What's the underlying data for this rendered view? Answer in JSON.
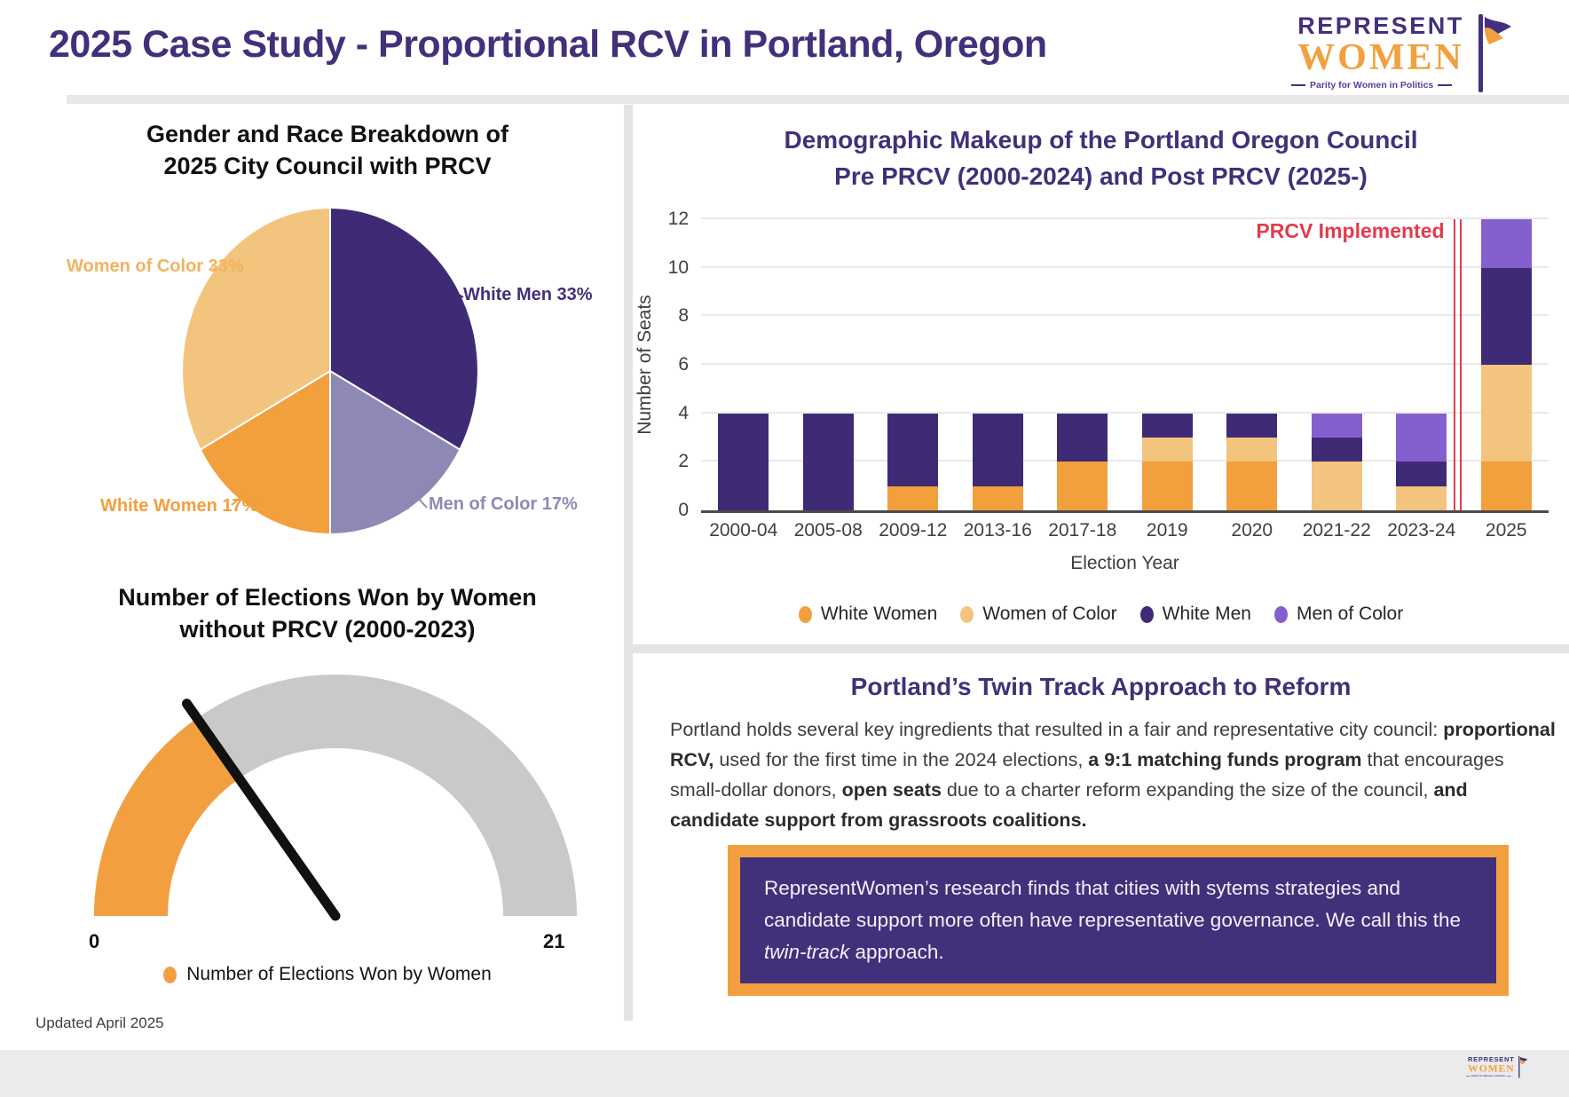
{
  "page": {
    "title": "2025 Case Study - Proportional RCV in Portland, Oregon",
    "updated": "Updated April 2025"
  },
  "logo": {
    "line1": "REPRESENT",
    "line2": "WOMEN",
    "tagline": "Parity for Women in Politics"
  },
  "colors": {
    "brand_purple": "#42307A",
    "brand_orange": "#F2A03F",
    "tan": "#F2C47D",
    "bar_light_purple": "#8460CE",
    "pie_gray_purple": "#8E89B4",
    "annotation_red": "#E23B4C",
    "gauge_track_gray": "#C9C9C9",
    "divider_gray": "#E4E4E4",
    "footer_gray": "#EBEBEB"
  },
  "chart_data": [
    {
      "type": "pie",
      "title": "Gender and Race Breakdown of 2025 City Council with PRCV",
      "title_line1": "Gender and Race Breakdown of",
      "title_line2": "2025 City Council with PRCV",
      "slices": [
        {
          "label": "White Men",
          "pct": 33,
          "display": "White Men 33%",
          "color": "#3F2B75"
        },
        {
          "label": "Men of Color",
          "pct": 17,
          "display": "Men of Color 17%",
          "color": "#8E89B4"
        },
        {
          "label": "White Women",
          "pct": 17,
          "display": "White Women 17%",
          "color": "#F29F3D"
        },
        {
          "label": "Women of Color",
          "pct": 33,
          "display": "Women of Color 33%",
          "color": "#F2C47D"
        }
      ],
      "start_angle_deg": 0,
      "clockwise": true,
      "legend_position": "none"
    },
    {
      "type": "bar",
      "stacked": true,
      "title": "Demographic Makeup of the Portland Oregon Council Pre PRCV (2000-2024) and Post PRCV (2025-)",
      "title_line1": "Demographic Makeup of the Portland Oregon Council",
      "title_line2": "Pre PRCV (2000-2024) and Post PRCV (2025-)",
      "categories": [
        "2000-04",
        "2005-08",
        "2009-12",
        "2013-16",
        "2017-18",
        "2019",
        "2020",
        "2021-22",
        "2023-24",
        "2025"
      ],
      "series": [
        {
          "name": "White Women",
          "color": "#F29F3D",
          "values": [
            0,
            0,
            1,
            1,
            2,
            2,
            2,
            0,
            0,
            2
          ]
        },
        {
          "name": "Women of Color",
          "color": "#F2C47D",
          "values": [
            0,
            0,
            0,
            0,
            0,
            1,
            1,
            2,
            1,
            4
          ]
        },
        {
          "name": "White Men",
          "color": "#3F2B75",
          "values": [
            4,
            4,
            3,
            3,
            2,
            1,
            1,
            1,
            1,
            4
          ]
        },
        {
          "name": "Men of Color",
          "color": "#8460CE",
          "values": [
            0,
            0,
            0,
            0,
            0,
            0,
            0,
            1,
            2,
            2
          ]
        }
      ],
      "xlabel": "Election Year",
      "ylabel": "Number of Seats",
      "ylim": [
        0,
        12
      ],
      "yticks": [
        0,
        2,
        4,
        6,
        8,
        10,
        12
      ],
      "grid": true,
      "legend_position": "bottom",
      "annotation": {
        "text": "PRCV Implemented",
        "color": "#E23B4C",
        "x_fraction": 0.893
      }
    },
    {
      "type": "gauge",
      "title": "Number of Elections Won by Women without PRCV (2000-2023)",
      "title_line1": "Number of Elections Won by Women",
      "title_line2": "without PRCV (2000-2023)",
      "value": 7,
      "min": 0,
      "max": 21,
      "min_label": "0",
      "max_label": "21",
      "needle_angle_deg": 125,
      "fill_color": "#F2A03F",
      "track_color": "#C9C9C9",
      "needle_color": "#111111",
      "legend": "Number of Elections Won by Women",
      "legend_position": "bottom"
    }
  ],
  "reform": {
    "heading": "Portland’s Twin Track Approach to Reform",
    "paragraph": [
      {
        "text": "Portland holds several key ingredients that resulted in a fair and representative city council: "
      },
      {
        "text": "proportional RCV,",
        "bold": true
      },
      {
        "text": " used for the first time in the 2024 elections, "
      },
      {
        "text": "a 9:1 matching funds program",
        "bold": true
      },
      {
        "text": " that encourages small-dollar donors, "
      },
      {
        "text": "open seats",
        "bold": true
      },
      {
        "text": " due to a charter reform expanding the size of the council, "
      },
      {
        "text": "and candidate support from grassroots coalitions.",
        "bold": true
      }
    ]
  },
  "callout": {
    "segments": [
      {
        "text": "RepresentWomen’s research finds that cities with sytems strategies and candidate support more often have representative governance. We call this the "
      },
      {
        "text": "twin-track",
        "italic": true
      },
      {
        "text": " approach."
      }
    ]
  }
}
